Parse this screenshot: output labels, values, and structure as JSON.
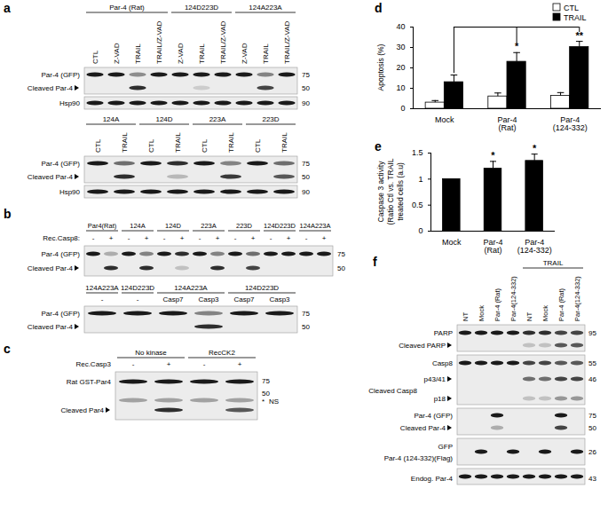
{
  "chart_data": [
    {
      "type": "bar",
      "title": "d",
      "categories": [
        "Mock",
        "Par-4 (Rat)",
        "Par-4 (124-332)"
      ],
      "series": [
        {
          "name": "CTL",
          "color": "#ffffff",
          "values": [
            3,
            6,
            6.3
          ],
          "errors": [
            1,
            1.7,
            1.6
          ]
        },
        {
          "name": "TRAIL",
          "color": "#000000",
          "values": [
            13,
            23,
            30.2
          ],
          "errors": [
            3.5,
            4.5,
            2.8
          ]
        }
      ],
      "y_label": "Apoptosis (%)",
      "ylim": [
        0,
        40
      ],
      "yticks": [
        0,
        10,
        20,
        30,
        40
      ],
      "grid": false,
      "legend": "top-right",
      "annotations": [
        {
          "category": "Par-4 (Rat)",
          "series": "TRAIL",
          "text": "*"
        },
        {
          "category": "Par-4 (124-332)",
          "series": "TRAIL",
          "text": "**"
        }
      ]
    },
    {
      "type": "bar",
      "title": "e",
      "categories": [
        "Mock",
        "Par-4 (Rat)",
        "Par-4 (124-332)"
      ],
      "values": [
        1,
        1.2,
        1.35
      ],
      "errors": [
        0,
        0.14,
        0.13
      ],
      "color": "#000000",
      "y_label": [
        "Caspase 3 activity",
        "(Ratio Ctl vs. TRAIL",
        "treated cells (a.u)"
      ],
      "ylim": [
        0,
        1.5
      ],
      "yticks": [
        0,
        0.5,
        1,
        1.5
      ],
      "grid": false,
      "annotations": [
        {
          "category": "Par-4 (Rat)",
          "text": "*"
        },
        {
          "category": "Par-4 (124-332)",
          "text": "*"
        }
      ]
    }
  ],
  "blots": {
    "a1": {
      "panel": "a",
      "groups": [
        {
          "label": "Par-4 (Rat)",
          "lanes": [
            "CTL",
            "Z-VAD",
            "TRAIL",
            "TRAIL/Z-VAD"
          ]
        },
        {
          "label": "124D223D",
          "lanes": [
            "Z-VAD",
            "TRAIL",
            "TRAIL/Z-VAD"
          ]
        },
        {
          "label": "124A223A",
          "lanes": [
            "Z-VAD",
            "TRAIL",
            "TRAIL/Z-VAD"
          ]
        }
      ],
      "strips": [
        {
          "rows": [
            "Par-4 (GFP)",
            "Cleaved Par-4"
          ],
          "markers": [
            75,
            50
          ]
        },
        {
          "rows": [
            "Hsp90"
          ],
          "markers": [
            90
          ]
        }
      ]
    },
    "a2": {
      "groups": [
        {
          "label": "124A",
          "lanes": [
            "CTL",
            "TRAIL"
          ]
        },
        {
          "label": "124D",
          "lanes": [
            "CTL",
            "TRAIL"
          ]
        },
        {
          "label": "223A",
          "lanes": [
            "CTL",
            "TRAIL"
          ]
        },
        {
          "label": "223D",
          "lanes": [
            "CTL",
            "TRAIL"
          ]
        }
      ],
      "strips": [
        {
          "rows": [
            "Par-4 (GFP)",
            "Cleaved Par-4"
          ],
          "markers": [
            75,
            50
          ]
        },
        {
          "rows": [
            "Hsp90"
          ],
          "markers": [
            90
          ]
        }
      ]
    },
    "b1": {
      "panel": "b",
      "lane_title": "Rec.Casp8:",
      "groups": [
        {
          "label": "Par4(Rat)",
          "lanes": [
            "-",
            "+"
          ]
        },
        {
          "label": "124A",
          "lanes": [
            "-",
            "+"
          ]
        },
        {
          "label": "124D",
          "lanes": [
            "-",
            "+"
          ]
        },
        {
          "label": "223A",
          "lanes": [
            "-",
            "+"
          ]
        },
        {
          "label": "223D",
          "lanes": [
            "-",
            "+"
          ]
        },
        {
          "label": "124D223D",
          "lanes": [
            "-",
            "+"
          ]
        },
        {
          "label": "124A223A",
          "lanes": [
            "-",
            "+"
          ]
        }
      ],
      "strips": [
        {
          "rows": [
            "Par-4 (GFP)",
            "Cleaved Par-4"
          ],
          "markers": [
            75,
            50
          ]
        }
      ]
    },
    "b2": {
      "groups": [
        {
          "label": "124A223A",
          "lanes": [
            "-"
          ]
        },
        {
          "label": "124D223D",
          "lanes": [
            "-"
          ]
        },
        {
          "label": "124A223A",
          "lanes": [
            "Casp7",
            "Casp3"
          ]
        },
        {
          "label": "124D223D",
          "lanes": [
            "Casp7",
            "Casp3"
          ]
        }
      ],
      "strips": [
        {
          "rows": [
            "Par-4 (GFP)",
            "Cleaved Par-4"
          ],
          "markers": [
            75,
            50
          ]
        }
      ]
    },
    "c": {
      "panel": "c",
      "lane_title": "Rec.Casp3",
      "groups": [
        {
          "label": "No kinase",
          "lanes": [
            "-",
            "+"
          ]
        },
        {
          "label": "RecCK2",
          "lanes": [
            "-",
            "+"
          ]
        }
      ],
      "strips": [
        {
          "rows": [
            "Rat GST-Par4",
            "Cleaved Par4"
          ],
          "markers": [
            75,
            50
          ]
        }
      ],
      "annotations": [
        "*",
        "NS"
      ]
    },
    "f": {
      "panel": "f",
      "groups": [
        {
          "label": null,
          "lanes": [
            "NT",
            "Mock",
            "Par-4 (Rat)",
            "Par-4(124-332)"
          ]
        },
        {
          "label": "TRAIL",
          "lanes": [
            "NT",
            "Mock",
            "Par-4 (Rat)",
            "Par-4(124-332)"
          ]
        }
      ],
      "strips": [
        {
          "rows": [
            "PARP",
            "Cleaved PARP"
          ],
          "markers": [
            95
          ]
        },
        {
          "rows": [
            "Casp8",
            "Cleaved Casp8"
          ],
          "sublabels": [
            "p43/41",
            "p18"
          ],
          "markers": [
            55,
            46
          ]
        },
        {
          "rows": [
            "Par-4 (GFP)",
            "Cleaved Par-4"
          ],
          "markers": [
            75,
            50
          ]
        },
        {
          "rows": [
            "GFP",
            "Par-4 (124-332)(Flag)"
          ],
          "markers": [
            26
          ]
        },
        {
          "rows": [
            "Endog. Par-4"
          ],
          "markers": [
            43
          ]
        }
      ]
    }
  }
}
